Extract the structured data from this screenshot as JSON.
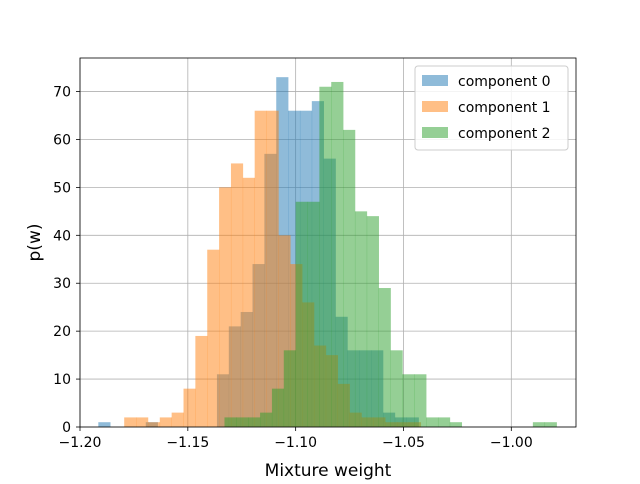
{
  "chart_data": {
    "type": "histogram",
    "xlabel": "Mixture weight",
    "ylabel": "p(w)",
    "xlim": [
      -1.2,
      -0.97
    ],
    "ylim": [
      0,
      77
    ],
    "grid": true,
    "legend_position": "top-right",
    "xticks": [
      -1.2,
      -1.15,
      -1.1,
      -1.05,
      -1.0
    ],
    "xtick_labels": [
      "−1.20",
      "−1.15",
      "−1.10",
      "−1.05",
      "−1.00"
    ],
    "yticks": [
      0,
      10,
      20,
      30,
      40,
      50,
      60,
      70
    ],
    "ytick_labels": [
      "0",
      "10",
      "20",
      "30",
      "40",
      "50",
      "60",
      "70"
    ],
    "series": [
      {
        "name": "component 0",
        "color": "#1f77b4",
        "alpha": 0.5,
        "bins": [
          [
            -1.1915,
            -1.186,
            1
          ],
          [
            -1.1695,
            -1.164,
            1
          ],
          [
            -1.1365,
            -1.131,
            11
          ],
          [
            -1.131,
            -1.1255,
            21
          ],
          [
            -1.1255,
            -1.12,
            24
          ],
          [
            -1.12,
            -1.1145,
            34
          ],
          [
            -1.1145,
            -1.109,
            57
          ],
          [
            -1.109,
            -1.1035,
            73
          ],
          [
            -1.1035,
            -1.098,
            66
          ],
          [
            -1.098,
            -1.0925,
            66
          ],
          [
            -1.0925,
            -1.087,
            68
          ],
          [
            -1.087,
            -1.0815,
            56
          ],
          [
            -1.0815,
            -1.076,
            23
          ],
          [
            -1.076,
            -1.0705,
            16
          ],
          [
            -1.0705,
            -1.065,
            16
          ],
          [
            -1.065,
            -1.0595,
            16
          ],
          [
            -1.0595,
            -1.054,
            3
          ],
          [
            -1.054,
            -1.0485,
            2
          ],
          [
            -1.0485,
            -1.043,
            2
          ]
        ]
      },
      {
        "name": "component 1",
        "color": "#ff7f0e",
        "alpha": 0.5,
        "bins": [
          [
            -1.1795,
            -1.174,
            2
          ],
          [
            -1.174,
            -1.1685,
            2
          ],
          [
            -1.1685,
            -1.163,
            1
          ],
          [
            -1.163,
            -1.1575,
            2
          ],
          [
            -1.1575,
            -1.152,
            3
          ],
          [
            -1.152,
            -1.1465,
            8
          ],
          [
            -1.1465,
            -1.141,
            19
          ],
          [
            -1.141,
            -1.1355,
            37
          ],
          [
            -1.1355,
            -1.13,
            50
          ],
          [
            -1.13,
            -1.1245,
            55
          ],
          [
            -1.1245,
            -1.119,
            52
          ],
          [
            -1.119,
            -1.1135,
            66
          ],
          [
            -1.1135,
            -1.108,
            66
          ],
          [
            -1.108,
            -1.1025,
            40
          ],
          [
            -1.1025,
            -1.097,
            34
          ],
          [
            -1.097,
            -1.0915,
            26
          ],
          [
            -1.0915,
            -1.086,
            17
          ],
          [
            -1.086,
            -1.0805,
            15
          ],
          [
            -1.0805,
            -1.075,
            9
          ],
          [
            -1.075,
            -1.0695,
            3
          ],
          [
            -1.0695,
            -1.064,
            2
          ],
          [
            -1.064,
            -1.0585,
            2
          ],
          [
            -1.0585,
            -1.053,
            1
          ],
          [
            -1.053,
            -1.0475,
            1
          ],
          [
            -1.0475,
            -1.042,
            1
          ]
        ]
      },
      {
        "name": "component 2",
        "color": "#2ca02c",
        "alpha": 0.5,
        "bins": [
          [
            -1.133,
            -1.1275,
            2
          ],
          [
            -1.1275,
            -1.122,
            2
          ],
          [
            -1.122,
            -1.1165,
            2
          ],
          [
            -1.1165,
            -1.111,
            3
          ],
          [
            -1.111,
            -1.1055,
            8
          ],
          [
            -1.1055,
            -1.1,
            16
          ],
          [
            -1.1,
            -1.0945,
            47
          ],
          [
            -1.0945,
            -1.089,
            47
          ],
          [
            -1.089,
            -1.0835,
            71
          ],
          [
            -1.0835,
            -1.078,
            72
          ],
          [
            -1.078,
            -1.0725,
            62
          ],
          [
            -1.0725,
            -1.067,
            45
          ],
          [
            -1.067,
            -1.0615,
            44
          ],
          [
            -1.0615,
            -1.056,
            29
          ],
          [
            -1.056,
            -1.0505,
            16
          ],
          [
            -1.0505,
            -1.045,
            11
          ],
          [
            -1.045,
            -1.0395,
            11
          ],
          [
            -1.0395,
            -1.034,
            2
          ],
          [
            -1.034,
            -1.0285,
            2
          ],
          [
            -1.0285,
            -1.023,
            1
          ],
          [
            -1.023,
            -1.0175,
            0
          ],
          [
            -1.0175,
            -1.012,
            0
          ],
          [
            -1.012,
            -1.0065,
            0
          ],
          [
            -1.0065,
            -1.001,
            0
          ],
          [
            -1.001,
            -0.9955,
            0
          ],
          [
            -0.9955,
            -0.99,
            0
          ],
          [
            -0.99,
            -0.9845,
            1
          ],
          [
            -0.9845,
            -0.979,
            1
          ],
          [
            -0.979,
            -0.9735,
            0
          ]
        ]
      }
    ]
  }
}
